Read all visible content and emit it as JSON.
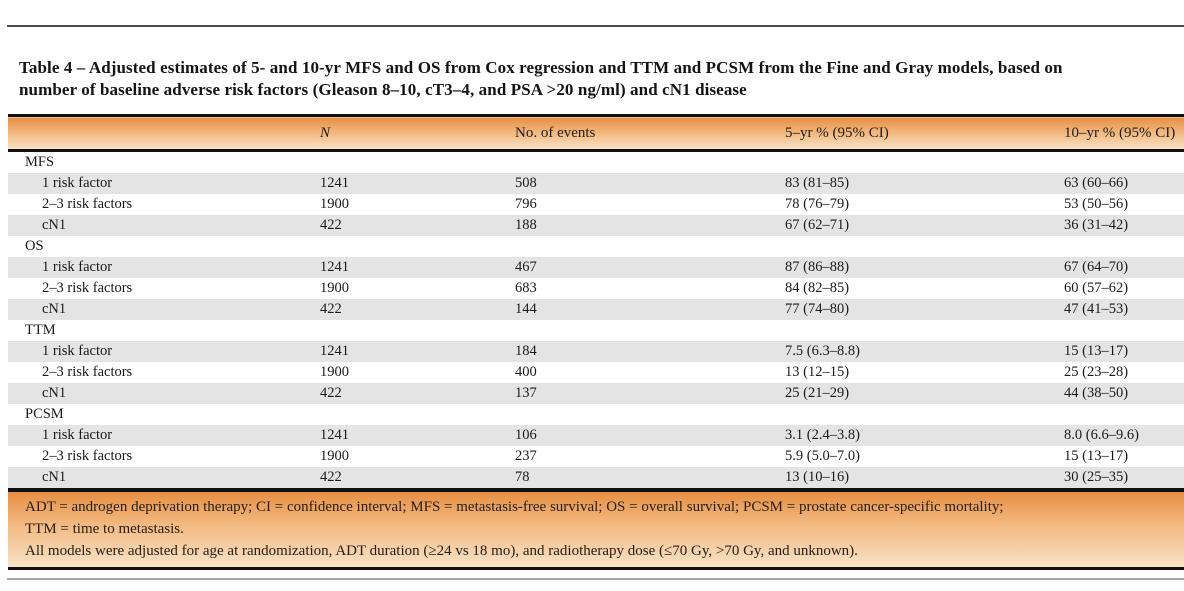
{
  "caption": {
    "label": "Table 4",
    "line1": "Table 4 – Adjusted estimates of 5- and 10-yr MFS and OS from Cox regression and TTM and PCSM from the Fine and Gray models, based on",
    "line2": "number of baseline adverse risk factors (Gleason 8–10, cT3–4, and PSA >20 ng/ml) and cN1 disease"
  },
  "table": {
    "columns": [
      "",
      "N",
      "No. of events",
      "5–yr % (95% CI)",
      "10–yr % (95% CI)"
    ],
    "sections": [
      {
        "label": "MFS",
        "rows": [
          {
            "label": "1 risk factor",
            "n": "1241",
            "events": "508",
            "yr5": "83 (81–85)",
            "yr10": "63 (60–66)"
          },
          {
            "label": "2–3 risk factors",
            "n": "1900",
            "events": "796",
            "yr5": "78 (76–79)",
            "yr10": "53 (50–56)"
          },
          {
            "label": "cN1",
            "n": "422",
            "events": "188",
            "yr5": "67 (62–71)",
            "yr10": "36 (31–42)"
          }
        ]
      },
      {
        "label": "OS",
        "rows": [
          {
            "label": "1 risk factor",
            "n": "1241",
            "events": "467",
            "yr5": "87 (86–88)",
            "yr10": "67 (64–70)"
          },
          {
            "label": "2–3 risk factors",
            "n": "1900",
            "events": "683",
            "yr5": "84 (82–85)",
            "yr10": "60 (57–62)"
          },
          {
            "label": "cN1",
            "n": "422",
            "events": "144",
            "yr5": "77 (74–80)",
            "yr10": "47 (41–53)"
          }
        ]
      },
      {
        "label": "TTM",
        "rows": [
          {
            "label": "1 risk factor",
            "n": "1241",
            "events": "184",
            "yr5": "7.5 (6.3–8.8)",
            "yr10": "15 (13–17)"
          },
          {
            "label": "2–3 risk factors",
            "n": "1900",
            "events": "400",
            "yr5": "13 (12–15)",
            "yr10": "25 (23–28)"
          },
          {
            "label": "cN1",
            "n": "422",
            "events": "137",
            "yr5": "25 (21–29)",
            "yr10": "44 (38–50)"
          }
        ]
      },
      {
        "label": "PCSM",
        "rows": [
          {
            "label": "1 risk factor",
            "n": "1241",
            "events": "106",
            "yr5": "3.1 (2.4–3.8)",
            "yr10": "8.0 (6.6–9.6)"
          },
          {
            "label": "2–3 risk factors",
            "n": "1900",
            "events": "237",
            "yr5": "5.9 (5.0–7.0)",
            "yr10": "15 (13–17)"
          },
          {
            "label": "cN1",
            "n": "422",
            "events": "78",
            "yr5": "13 (10–16)",
            "yr10": "30 (25–35)"
          }
        ]
      }
    ]
  },
  "footnotes": [
    "ADT = androgen deprivation therapy; CI = confidence interval; MFS = metastasis-free survival; OS = overall survival; PCSM = prostate cancer-specific mortality;",
    "TTM = time to metastasis.",
    "All models were adjusted for age at randomization, ADT duration (≥24 vs 18 mo), and radiotherapy dose (≤70 Gy, >70 Gy, and unknown)."
  ],
  "colors": {
    "band_gradient_top": "#e78f43",
    "band_gradient_bottom": "#f9e2c6",
    "row_stripe": "#e4e4e4",
    "border_black": "#101010",
    "top_rule": "#4a4a4a",
    "bottom_rule": "#a8a8a8",
    "text": "#1a1a1a"
  }
}
